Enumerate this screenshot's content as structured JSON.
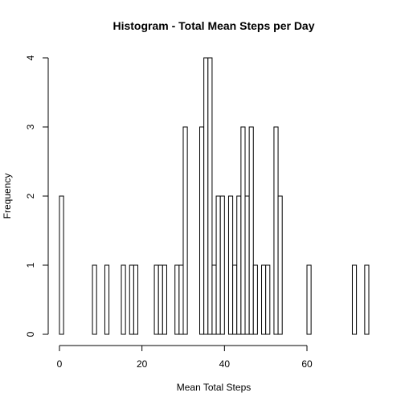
{
  "chart_data": {
    "type": "bar",
    "subtype": "histogram",
    "title": "Histogram - Total Mean Steps per Day",
    "xlabel": "Mean Total Steps",
    "ylabel": "Frequency",
    "xlim": [
      0,
      75
    ],
    "ylim": [
      0,
      4
    ],
    "x_ticks": [
      0,
      20,
      40,
      60
    ],
    "x_tick_labels": [
      "0",
      "20",
      "40",
      "60"
    ],
    "y_ticks": [
      0,
      1,
      2,
      3,
      4
    ],
    "y_tick_labels": [
      "0",
      "1",
      "2",
      "3",
      "4"
    ],
    "bin_width": 1,
    "grid": false,
    "bar_fill": "#ffffff",
    "bar_stroke": "#000000",
    "bins": [
      {
        "x0": 0,
        "x1": 1,
        "count": 2
      },
      {
        "x0": 8,
        "x1": 9,
        "count": 1
      },
      {
        "x0": 11,
        "x1": 12,
        "count": 1
      },
      {
        "x0": 15,
        "x1": 16,
        "count": 1
      },
      {
        "x0": 17,
        "x1": 18,
        "count": 1
      },
      {
        "x0": 18,
        "x1": 19,
        "count": 1
      },
      {
        "x0": 23,
        "x1": 24,
        "count": 1
      },
      {
        "x0": 24,
        "x1": 25,
        "count": 1
      },
      {
        "x0": 25,
        "x1": 26,
        "count": 1
      },
      {
        "x0": 28,
        "x1": 29,
        "count": 1
      },
      {
        "x0": 29,
        "x1": 30,
        "count": 1
      },
      {
        "x0": 30,
        "x1": 31,
        "count": 3
      },
      {
        "x0": 34,
        "x1": 35,
        "count": 3
      },
      {
        "x0": 35,
        "x1": 36,
        "count": 4
      },
      {
        "x0": 36,
        "x1": 37,
        "count": 4
      },
      {
        "x0": 37,
        "x1": 38,
        "count": 1
      },
      {
        "x0": 38,
        "x1": 39,
        "count": 2
      },
      {
        "x0": 39,
        "x1": 40,
        "count": 2
      },
      {
        "x0": 41,
        "x1": 42,
        "count": 2
      },
      {
        "x0": 42,
        "x1": 43,
        "count": 1
      },
      {
        "x0": 43,
        "x1": 44,
        "count": 2
      },
      {
        "x0": 44,
        "x1": 45,
        "count": 3
      },
      {
        "x0": 45,
        "x1": 46,
        "count": 2
      },
      {
        "x0": 46,
        "x1": 47,
        "count": 3
      },
      {
        "x0": 47,
        "x1": 48,
        "count": 1
      },
      {
        "x0": 49,
        "x1": 50,
        "count": 1
      },
      {
        "x0": 50,
        "x1": 51,
        "count": 1
      },
      {
        "x0": 52,
        "x1": 53,
        "count": 3
      },
      {
        "x0": 53,
        "x1": 54,
        "count": 2
      },
      {
        "x0": 60,
        "x1": 61,
        "count": 1
      },
      {
        "x0": 71,
        "x1": 72,
        "count": 1
      },
      {
        "x0": 74,
        "x1": 75,
        "count": 1
      }
    ]
  }
}
